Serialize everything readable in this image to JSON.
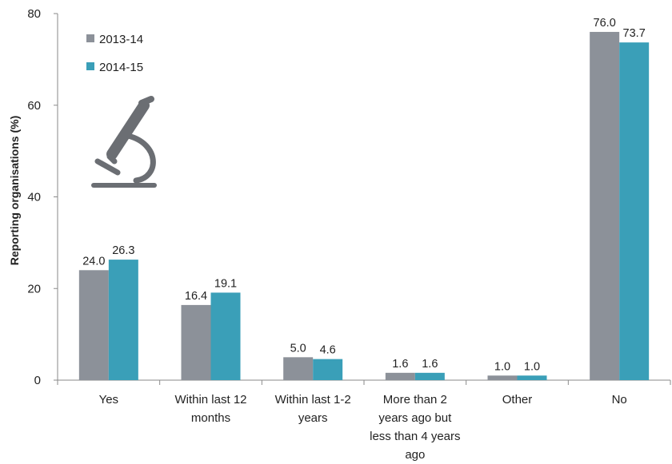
{
  "chart_data": {
    "type": "bar",
    "ylabel": "Reporting organisations (%)",
    "xlabel": "",
    "ylim": [
      0,
      80
    ],
    "yticks": [
      "0",
      "20",
      "40",
      "60",
      "80"
    ],
    "grid": false,
    "legend_position": "top-left",
    "categories": [
      "Yes",
      "Within last 12 months",
      "Within last 1-2 years",
      "More than 2 years ago but less than 4 years ago",
      "Other",
      "No"
    ],
    "category_lines": [
      [
        "Yes"
      ],
      [
        "Within last 12",
        "months"
      ],
      [
        "Within last 1-2",
        "years"
      ],
      [
        "More than 2",
        "years ago but",
        "less than 4 years",
        "ago"
      ],
      [
        "Other"
      ],
      [
        "No"
      ]
    ],
    "series": [
      {
        "name": "2013-14",
        "color": "#8c9199",
        "values": [
          24.0,
          16.4,
          5.0,
          1.6,
          1.0,
          76.0
        ],
        "labels": [
          "24.0",
          "16.4",
          "5.0",
          "1.6",
          "1.0",
          "76.0"
        ]
      },
      {
        "name": "2014-15",
        "color": "#3a9fb8",
        "values": [
          26.3,
          19.1,
          4.6,
          1.6,
          1.0,
          73.7
        ],
        "labels": [
          "26.3",
          "19.1",
          "4.6",
          "1.6",
          "1.0",
          "73.7"
        ]
      }
    ],
    "icon": "microscope-icon",
    "icon_color": "#6b6e73",
    "axis_color": "#8a8a8a"
  }
}
